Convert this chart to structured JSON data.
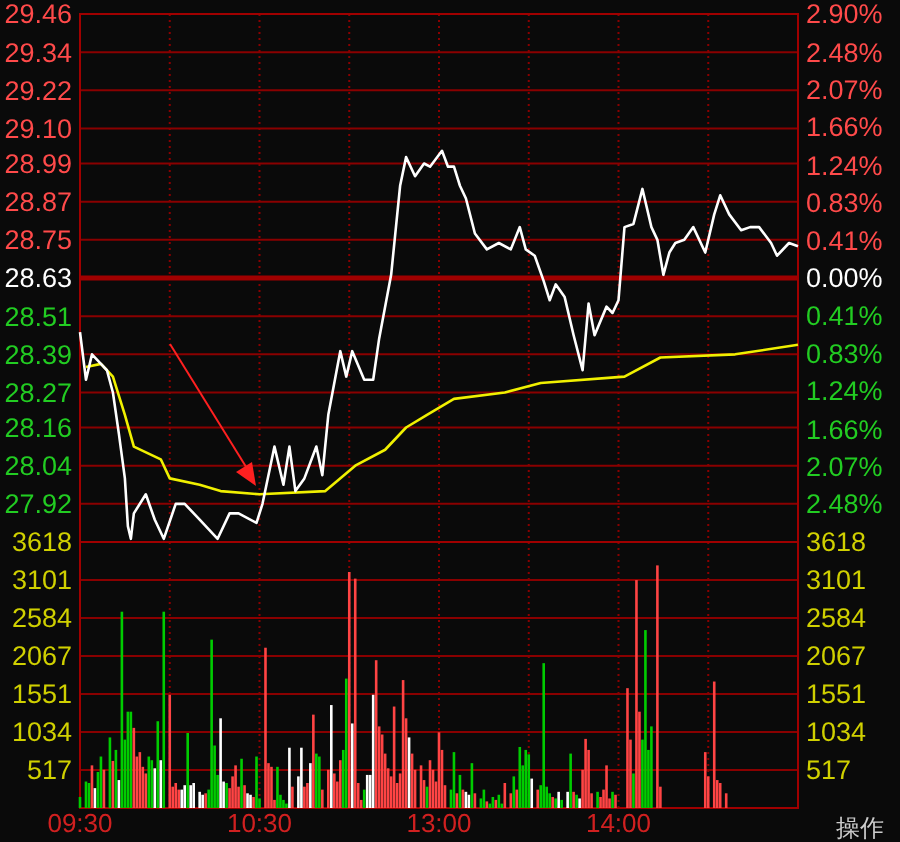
{
  "chart_data": [
    {
      "type": "line",
      "categories": [
        null,
        null,
        null,
        null,
        null,
        null,
        null,
        null,
        null,
        null,
        null,
        null,
        null,
        null,
        null,
        null,
        null,
        null,
        null,
        null,
        null,
        null,
        null,
        null,
        null,
        null,
        null,
        null,
        null,
        null,
        null,
        null,
        null,
        null,
        null,
        null,
        null,
        null,
        null,
        null,
        null,
        null,
        null,
        null,
        null,
        null,
        null,
        null,
        null,
        null,
        null,
        null,
        null,
        null,
        null,
        null,
        null,
        null,
        null,
        null,
        null,
        null,
        null,
        null,
        null,
        null,
        null,
        null,
        null,
        null,
        null,
        null,
        null,
        null,
        null,
        null,
        null,
        null,
        null,
        null,
        null,
        null,
        null,
        null,
        null,
        null,
        null,
        null,
        null,
        null,
        null,
        null,
        null,
        null,
        null,
        null,
        null,
        null,
        null,
        null,
        null,
        null,
        null,
        null,
        null,
        null,
        null,
        null,
        null,
        null,
        null,
        null,
        null,
        null,
        null,
        null,
        null,
        null,
        null,
        null,
        null,
        null,
        null,
        null,
        null,
        null,
        null,
        null,
        null,
        null,
        null,
        null,
        null,
        null,
        null,
        null,
        null,
        null,
        null,
        null,
        null,
        null,
        null,
        null,
        null,
        null,
        null,
        null,
        null,
        null,
        null,
        null,
        null,
        null,
        null,
        null,
        null,
        null,
        null,
        null,
        null,
        null,
        null,
        null,
        null,
        null,
        null,
        null,
        null,
        null,
        null,
        null,
        null,
        null,
        null,
        null,
        null,
        null,
        null,
        null,
        null,
        null,
        null,
        null,
        null,
        null,
        null,
        null,
        null,
        null,
        null,
        null,
        null,
        null,
        null,
        null,
        null,
        null,
        null,
        null,
        null,
        null,
        null,
        null,
        null,
        null,
        null,
        null,
        null,
        null,
        null,
        null,
        null,
        null,
        null,
        null,
        null,
        null,
        null,
        null,
        null,
        null,
        null,
        null,
        null,
        null,
        null,
        null,
        null,
        null,
        null,
        null,
        null,
        null,
        null,
        null,
        null,
        null,
        null,
        null,
        null
      ],
      "ylim": [
        27.8,
        29.46
      ],
      "yticks": [
        27.92,
        28.04,
        28.16,
        28.27,
        28.39,
        28.51,
        28.63,
        28.75,
        28.87,
        28.99,
        {
          "value": 29.1,
          "label": "29.10"
        },
        29.22,
        29.34,
        29.46
      ],
      "y2lim": [
        -2.9,
        2.9
      ],
      "y2ticks": [
        {
          "value": -2.48,
          "label": "2.48%"
        },
        {
          "value": -2.07,
          "label": "2.07%"
        },
        {
          "value": -1.66,
          "label": "1.66%"
        },
        {
          "value": -1.24,
          "label": "1.24%"
        },
        {
          "value": -0.83,
          "label": "0.83%"
        },
        {
          "value": -0.41,
          "label": "0.41%"
        },
        {
          "value": 0,
          "label": "0.00%"
        },
        {
          "value": 0.41,
          "label": "0.41%"
        },
        {
          "value": 0.83,
          "label": "0.83%"
        },
        {
          "value": 1.24,
          "label": "1.24%"
        },
        {
          "value": 1.66,
          "label": "1.66%"
        },
        {
          "value": 2.07,
          "label": "2.07%"
        },
        {
          "value": 2.48,
          "label": "2.48%"
        },
        {
          "value": 2.9,
          "label": "2.90%"
        }
      ],
      "tick_labels": "y",
      "grid": true,
      "ref_lines": [
        {
          "axis": "y",
          "value": 28.63,
          "color": "#a00000"
        }
      ],
      "series": [
        {
          "color": "#ffffff",
          "values": [
            28.46,
            null,
            28.31,
            null,
            28.39,
            null,
            null,
            28.36,
            null,
            28.34,
            null,
            28.27,
            null,
            28.14,
            null,
            28.0,
            27.85,
            27.81,
            27.89,
            null,
            null,
            null,
            27.95,
            null,
            null,
            27.87,
            null,
            null,
            27.81,
            null,
            null,
            null,
            27.92,
            null,
            null,
            27.92,
            null,
            null,
            null,
            null,
            27.87,
            null,
            null,
            null,
            null,
            null,
            27.81,
            null,
            null,
            null,
            27.89,
            null,
            null,
            27.89,
            null,
            null,
            null,
            null,
            null,
            27.86,
            null,
            27.92,
            null,
            null,
            null,
            28.1,
            null,
            null,
            27.98,
            null,
            28.1,
            null,
            27.96,
            null,
            null,
            28.0,
            null,
            null,
            null,
            28.1,
            null,
            28.01,
            null,
            28.2,
            null,
            null,
            null,
            28.4,
            null,
            28.32,
            null,
            28.4,
            null,
            null,
            null,
            28.31,
            null,
            null,
            28.31,
            null,
            28.44,
            null,
            null,
            null,
            28.64,
            null,
            null,
            28.92,
            null,
            29.01,
            null,
            null,
            28.95,
            null,
            null,
            28.99,
            null,
            28.98,
            null,
            null,
            null,
            29.03,
            null,
            28.98,
            null,
            28.98,
            null,
            28.92,
            null,
            28.88,
            null,
            null,
            28.77,
            null,
            null,
            null,
            28.72,
            null,
            null,
            null,
            28.74,
            null,
            null,
            null,
            28.72,
            null,
            null,
            28.79,
            null,
            28.72,
            null,
            null,
            28.7,
            null,
            null,
            28.62,
            null,
            28.56,
            null,
            28.61,
            null,
            null,
            28.57,
            null,
            null,
            28.45,
            null,
            null,
            28.34,
            null,
            28.55,
            null,
            28.45,
            null,
            null,
            null,
            28.54,
            null,
            28.52,
            null,
            28.56,
            null,
            28.79,
            null,
            null,
            28.8,
            null,
            null,
            28.91,
            null,
            null,
            28.79,
            null,
            28.75,
            null,
            28.64,
            null,
            28.71,
            null,
            28.74,
            null,
            null,
            28.75,
            null,
            null,
            28.79,
            null,
            null,
            null,
            28.71,
            null,
            null,
            28.83,
            null,
            28.89,
            null,
            null,
            28.83,
            null,
            null,
            null,
            28.78,
            null,
            null,
            28.79,
            null,
            null,
            28.79,
            null,
            null,
            null,
            28.74,
            null,
            28.7,
            null,
            null,
            null,
            28.74,
            null,
            null,
            28.73
          ]
        },
        {
          "color": "#f0f000",
          "values": [
            null,
            null,
            28.35,
            null,
            null,
            null,
            null,
            28.36,
            null,
            null,
            null,
            28.32,
            null,
            null,
            null,
            28.2,
            null,
            null,
            28.1,
            null,
            null,
            null,
            null,
            null,
            null,
            null,
            null,
            28.06,
            null,
            null,
            28.0,
            null,
            null,
            null,
            null,
            null,
            null,
            null,
            null,
            null,
            27.98,
            null,
            null,
            null,
            null,
            null,
            null,
            27.96,
            null,
            null,
            null,
            null,
            null,
            null,
            null,
            null,
            null,
            null,
            null,
            null,
            27.95,
            null,
            null,
            null,
            null,
            null,
            null,
            null,
            null,
            null,
            null,
            null,
            null,
            null,
            null,
            null,
            null,
            null,
            null,
            null,
            null,
            null,
            27.96,
            null,
            null,
            null,
            null,
            null,
            null,
            null,
            null,
            null,
            28.04,
            null,
            null,
            null,
            null,
            null,
            null,
            null,
            null,
            null,
            28.09,
            null,
            null,
            null,
            null,
            null,
            null,
            28.16,
            null,
            null,
            null,
            null,
            null,
            null,
            28.2,
            null,
            null,
            null,
            null,
            null,
            null,
            null,
            null,
            28.25,
            null,
            null,
            null,
            null,
            null,
            null,
            null,
            null,
            null,
            null,
            null,
            null,
            null,
            null,
            null,
            null,
            28.27,
            null,
            null,
            null,
            null,
            null,
            null,
            null,
            null,
            null,
            null,
            null,
            28.3,
            null,
            null,
            null,
            null,
            null,
            null,
            null,
            null,
            null,
            null,
            null,
            null,
            null,
            null,
            null,
            null,
            null,
            null,
            null,
            null,
            null,
            null,
            null,
            null,
            null,
            null,
            null,
            28.32,
            null,
            null,
            null,
            null,
            null,
            null,
            null,
            null,
            null,
            null,
            null,
            28.38,
            null,
            null,
            null,
            null,
            null,
            null,
            null,
            null,
            null,
            null,
            null,
            null,
            null,
            null,
            null,
            null,
            null,
            null,
            null,
            null,
            null,
            null,
            null,
            null,
            28.39,
            null,
            null,
            null,
            null,
            null,
            null,
            null,
            null,
            null,
            null,
            null,
            null,
            null,
            null,
            null,
            null,
            null,
            null,
            null,
            null,
            28.42
          ]
        }
      ]
    },
    {
      "type": "bar",
      "categories": [
        "09:30",
        null,
        null,
        null,
        null,
        null,
        null,
        null,
        null,
        null,
        null,
        null,
        null,
        null,
        null,
        null,
        null,
        null,
        null,
        null,
        null,
        null,
        null,
        null,
        null,
        null,
        null,
        null,
        null,
        null,
        null,
        null,
        null,
        null,
        null,
        null,
        null,
        null,
        null,
        null,
        null,
        null,
        null,
        null,
        null,
        null,
        null,
        null,
        null,
        null,
        null,
        null,
        null,
        null,
        null,
        null,
        null,
        null,
        null,
        null,
        "10:30",
        null,
        null,
        null,
        null,
        null,
        null,
        null,
        null,
        null,
        null,
        null,
        null,
        null,
        null,
        null,
        null,
        null,
        null,
        null,
        null,
        null,
        null,
        null,
        null,
        null,
        null,
        null,
        null,
        null,
        null,
        null,
        null,
        null,
        null,
        null,
        null,
        null,
        null,
        null,
        null,
        null,
        null,
        null,
        null,
        null,
        null,
        null,
        null,
        null,
        null,
        null,
        null,
        null,
        null,
        null,
        null,
        null,
        null,
        null,
        "13:00",
        null,
        null,
        null,
        null,
        null,
        null,
        null,
        null,
        null,
        null,
        null,
        null,
        null,
        null,
        null,
        null,
        null,
        null,
        null,
        null,
        null,
        null,
        null,
        null,
        null,
        null,
        null,
        null,
        null,
        null,
        null,
        null,
        null,
        null,
        null,
        null,
        null,
        null,
        null,
        null,
        null,
        null,
        null,
        null,
        null,
        null,
        null,
        null,
        null,
        null,
        null,
        null,
        null,
        null,
        null,
        null,
        null,
        null,
        null,
        "14:00",
        null,
        null,
        null,
        null,
        null,
        null,
        null,
        null,
        null,
        null,
        null,
        null,
        null,
        null,
        null,
        null,
        null,
        null,
        null,
        null,
        null,
        null,
        null,
        null,
        null,
        null,
        null,
        null,
        null,
        null,
        null,
        null,
        null,
        null,
        null,
        null,
        null,
        null,
        null,
        null,
        null,
        null,
        null,
        null,
        null,
        null,
        null,
        null,
        null,
        null,
        null,
        null,
        null,
        null,
        null,
        null,
        null,
        null,
        null,
        null
      ],
      "ylim": [
        0,
        3618
      ],
      "yticks": [
        517,
        1034,
        1551,
        2067,
        2584,
        3101,
        3618
      ],
      "y2lim": [
        0,
        3618
      ],
      "y2ticks": [
        517,
        1034,
        1551,
        2067,
        2584,
        3101,
        3618
      ],
      "grid": true,
      "annotations": [
        "操作"
      ],
      "values": [
        150,
        null,
        360,
        340,
        580,
        270,
        490,
        700,
        520,
        null,
        960,
        640,
        790,
        380,
        2670,
        930,
        1310,
        1310,
        1090,
        700,
        760,
        560,
        470,
        700,
        650,
        540,
        1180,
        650,
        2670,
        null,
        1540,
        290,
        340,
        250,
        250,
        310,
        1020,
        310,
        340,
        null,
        220,
        180,
        200,
        250,
        2290,
        850,
        450,
        1220,
        360,
        340,
        270,
        430,
        580,
        290,
        670,
        310,
        200,
        180,
        150,
        700,
        130,
        null,
        2180,
        610,
        560,
        110,
        560,
        180,
        110,
        60,
        820,
        290,
        null,
        430,
        820,
        290,
        340,
        610,
        1270,
        740,
        700,
        250,
        null,
        520,
        1400,
        470,
        360,
        650,
        790,
        1760,
        3210,
        1150,
        3120,
        340,
        110,
        250,
        450,
        450,
        1540,
        2010,
        1110,
        1000,
        740,
        540,
        430,
        1380,
        340,
        470,
        1740,
        1220,
        960,
        740,
        520,
        null,
        580,
        380,
        290,
        650,
        520,
        360,
        1030,
        790,
        310,
        null,
        250,
        760,
        200,
        450,
        250,
        220,
        180,
        610,
        200,
        null,
        130,
        250,
        90,
        60,
        150,
        110,
        180,
        60,
        340,
        null,
        200,
        430,
        250,
        830,
        580,
        790,
        730,
        400,
        null,
        250,
        310,
        1970,
        290,
        200,
        150,
        130,
        220,
        110,
        null,
        220,
        740,
        220,
        180,
        130,
        520,
        940,
        790,
        200,
        null,
        220,
        150,
        250,
        580,
        130,
        220,
        180,
        null,
        null,
        null,
        1630,
        930,
        470,
        3100,
        1310,
        930,
        2420,
        790,
        1110,
        null,
        3300,
        290,
        null,
        null,
        null,
        null,
        null,
        null,
        null,
        null,
        null,
        null,
        null,
        null,
        null,
        null,
        760,
        430,
        null,
        1720,
        380,
        340,
        null,
        200,
        null,
        null,
        null,
        null,
        null,
        null,
        null,
        null,
        null,
        null,
        null,
        null,
        null,
        null,
        null,
        null,
        null,
        null,
        null,
        null,
        null,
        null,
        null,
        null
      ],
      "colors": [
        "#00cc00",
        null,
        "#00cc00",
        "#00cc00",
        "#ff4444",
        "#ffffff",
        "#00cc00",
        "#00cc00",
        "#ff4444",
        null,
        "#00cc00",
        "#ff4444",
        "#00cc00",
        "#ffffff",
        "#00cc00",
        "#00cc00",
        "#00cc00",
        "#00cc00",
        "#ff4444",
        "#ff4444",
        "#ff4444",
        "#ff4444",
        "#ff4444",
        "#00cc00",
        "#00cc00",
        "#ffffff",
        "#00cc00",
        "#ffffff",
        "#00cc00",
        null,
        "#ff4444",
        "#ff4444",
        "#ff4444",
        "#ff4444",
        "#ffffff",
        "#ffffff",
        "#00cc00",
        "#ffffff",
        "#ffffff",
        null,
        "#ffffff",
        "#ffffff",
        "#ff4444",
        "#00cc00",
        "#00cc00",
        "#00cc00",
        "#00cc00",
        "#ffffff",
        "#ffffff",
        "#00cc00",
        "#ff4444",
        "#ff4444",
        "#ff4444",
        "#ff4444",
        "#00cc00",
        "#ff4444",
        "#ffffff",
        "#ffffff",
        "#ff4444",
        "#00cc00",
        "#00cc00",
        null,
        "#ff4444",
        "#ff4444",
        "#ff4444",
        "#ff4444",
        "#00cc00",
        "#00cc00",
        "#00cc00",
        "#00cc00",
        "#ffffff",
        "#ff4444",
        null,
        "#ffffff",
        "#ffffff",
        "#ff4444",
        "#ff4444",
        "#ffffff",
        "#ff4444",
        "#00cc00",
        "#00cc00",
        "#ff4444",
        null,
        "#ff4444",
        "#ffffff",
        "#ff4444",
        "#ff4444",
        "#ff4444",
        "#00cc00",
        "#00cc00",
        "#ff4444",
        "#ffffff",
        "#ff4444",
        "#ff4444",
        "#ff4444",
        "#00cc00",
        "#ffffff",
        "#ffffff",
        "#ffffff",
        "#ff4444",
        "#ff4444",
        "#ff4444",
        "#ff4444",
        "#ff4444",
        "#ff4444",
        "#ff4444",
        "#ff4444",
        "#ff4444",
        "#ff4444",
        "#ff4444",
        "#ffffff",
        "#ff4444",
        "#ff4444",
        null,
        "#ff4444",
        "#ff4444",
        "#00cc00",
        "#ff4444",
        "#ff4444",
        "#ff4444",
        "#ff4444",
        "#ff4444",
        "#ff4444",
        null,
        "#00cc00",
        "#00cc00",
        "#ff4444",
        "#00cc00",
        "#ff4444",
        "#ffffff",
        "#ffffff",
        "#00cc00",
        "#ff4444",
        null,
        "#00cc00",
        "#00cc00",
        "#ff4444",
        "#00cc00",
        "#00cc00",
        "#ff4444",
        "#00cc00",
        "#00cc00",
        "#ff4444",
        null,
        "#ff4444",
        "#00cc00",
        "#ff4444",
        "#00cc00",
        "#00cc00",
        "#00cc00",
        "#00cc00",
        "#ffffff",
        null,
        "#ff4444",
        "#00cc00",
        "#00cc00",
        "#00cc00",
        "#00cc00",
        "#ff4444",
        "#00cc00",
        "#ffffff",
        "#00cc00",
        null,
        "#ffffff",
        "#00cc00",
        "#ff4444",
        "#00cc00",
        "#ffffff",
        "#ff4444",
        "#ff4444",
        "#ff4444",
        "#ff4444",
        null,
        "#00cc00",
        "#ff4444",
        "#ff4444",
        "#ff4444",
        "#ff4444",
        "#00cc00",
        "#ff4444",
        null,
        null,
        null,
        "#ff4444",
        "#ff4444",
        "#00cc00",
        "#ff4444",
        "#ff4444",
        "#00cc00",
        "#00cc00",
        "#00cc00",
        "#00cc00",
        null,
        "#ff4444",
        "#ff4444",
        null,
        null,
        null,
        null,
        null,
        null,
        null,
        null,
        null,
        null,
        null,
        null,
        null,
        null,
        "#ff4444",
        "#ff4444",
        null,
        "#ff4444",
        "#ff4444",
        "#ff4444",
        null,
        "#ff4444",
        null,
        null,
        null,
        null,
        null,
        null,
        null,
        null,
        null,
        null,
        null,
        null,
        null,
        null,
        null,
        null,
        null,
        null,
        null,
        null,
        null,
        null,
        null,
        null
      ]
    }
  ]
}
